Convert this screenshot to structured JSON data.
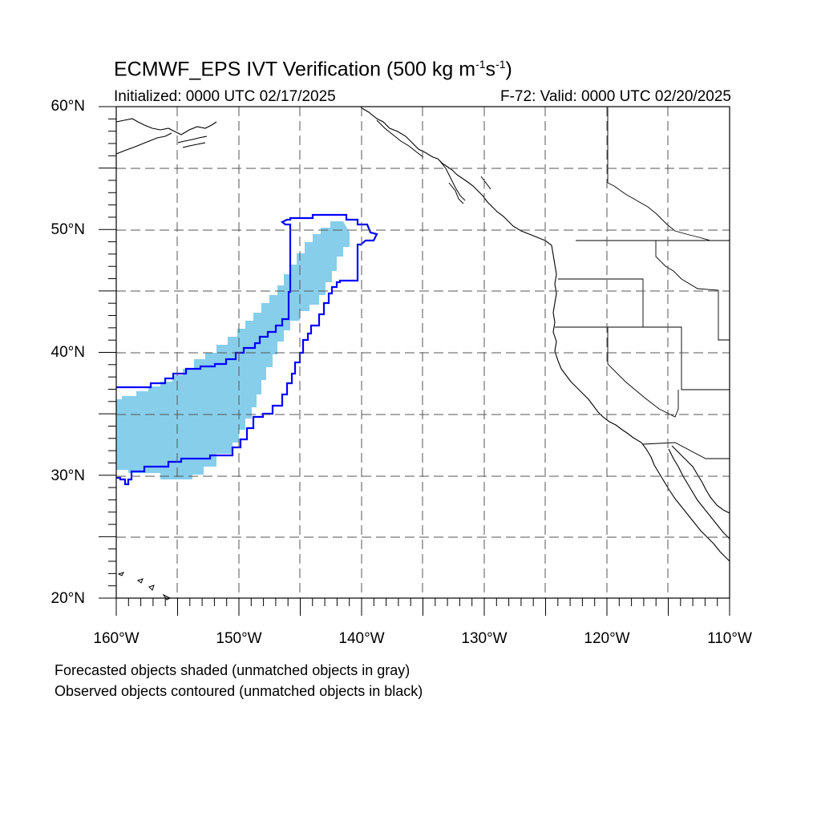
{
  "title": {
    "main": "ECMWF_EPS IVT Verification (500 kg m",
    "sup1": "-1",
    "mid": "s",
    "sup2": "-1",
    "end": ")"
  },
  "subtitle": {
    "left": "Initialized: 0000 UTC 02/17/2025",
    "right": "F-72: Valid: 0000 UTC 02/20/2025"
  },
  "axes": {
    "lat_labels": [
      "60°N",
      "50°N",
      "40°N",
      "30°N",
      "20°N"
    ],
    "lon_labels": [
      "160°W",
      "150°W",
      "140°W",
      "130°W",
      "120°W",
      "110°W"
    ],
    "lat_range": [
      20,
      60
    ],
    "lon_range": [
      -160,
      -110
    ],
    "grid": true,
    "grid_spacing_deg": 5
  },
  "notes": {
    "line1": "Forecasted objects shaded (unmatched objects in gray)",
    "line2": "Observed objects contoured (unmatched objects in black)"
  },
  "colors": {
    "forecast_fill": "#87ceeb",
    "observed_contour": "#0000ff",
    "coastline": "#000000",
    "grid": "#555555"
  }
}
